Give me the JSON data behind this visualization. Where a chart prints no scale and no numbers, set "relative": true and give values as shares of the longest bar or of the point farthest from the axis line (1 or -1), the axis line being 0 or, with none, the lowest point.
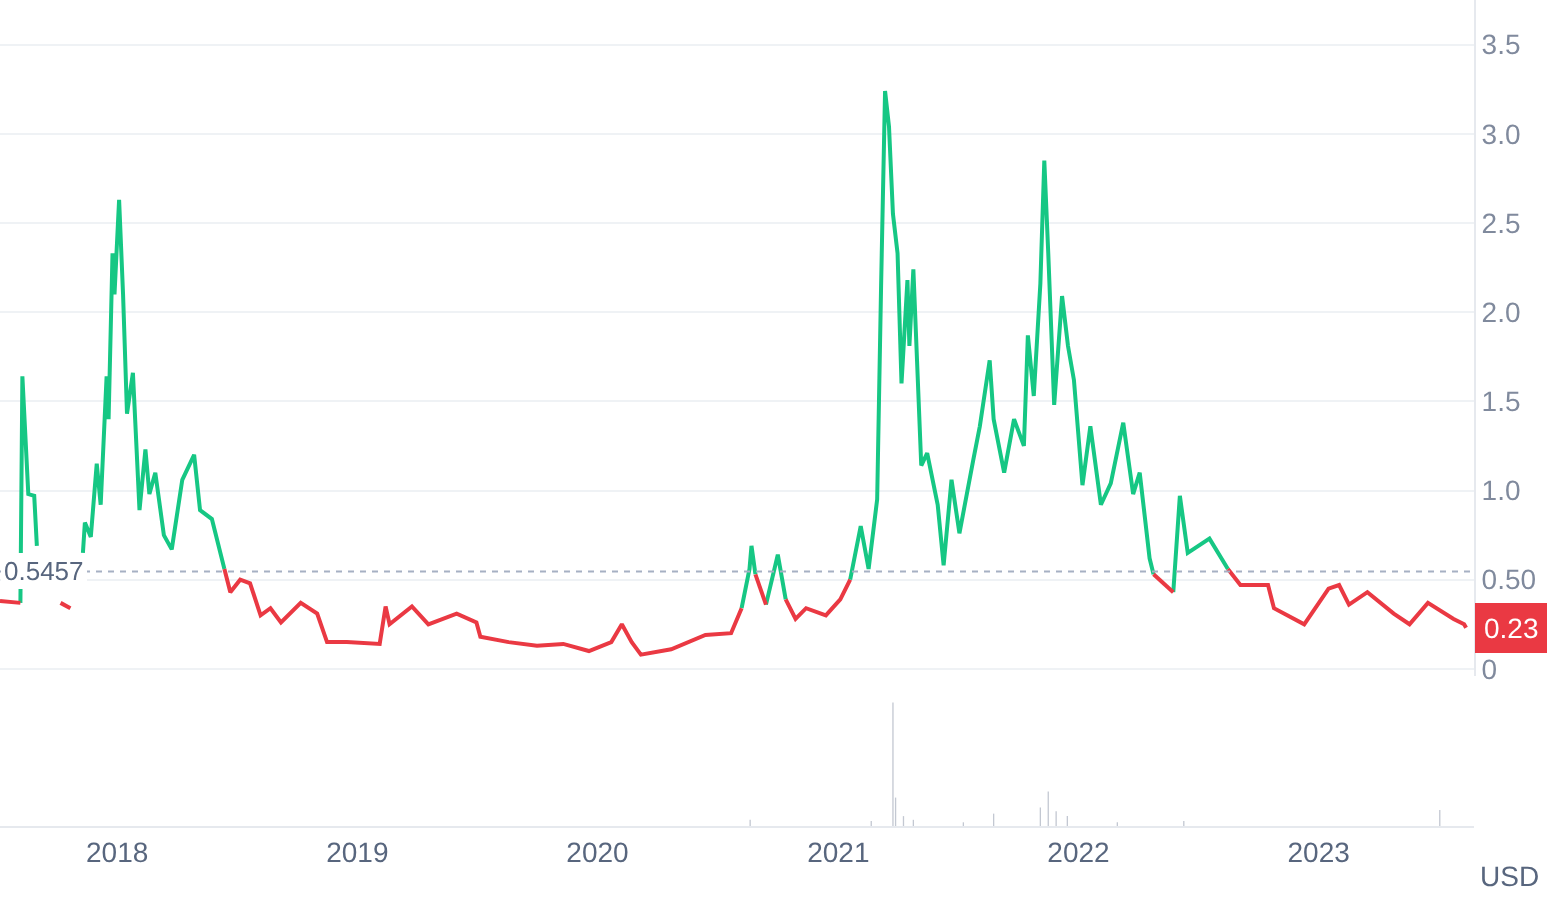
{
  "chart_data": [
    {
      "type": "line",
      "tick_labels": "y",
      "grid": "y",
      "line_style": "solid",
      "xlim": [
        "2017-07-07",
        "2023-08-25"
      ],
      "ylim": [
        -0.04,
        3.75
      ],
      "yticks": [
        0,
        {
          "value": 0.5,
          "label": "0.50"
        },
        {
          "value": 1,
          "label": "1.0"
        },
        1.5,
        {
          "value": 2,
          "label": "2.0"
        },
        2.5,
        {
          "value": 3,
          "label": "3.0"
        },
        3.5
      ],
      "ref_lines": [
        {
          "axis": "y",
          "value": 0.5457,
          "label": "0.5457",
          "color": "#a6b0c3",
          "line_style": "dotted"
        }
      ],
      "annotations": [
        {
          "text": "0.23",
          "x": "2023-08-13",
          "y": 0.23
        }
      ],
      "series": [
        {
          "color": "#16c784",
          "x": [
            "2017-08-07",
            "2017-08-10",
            "2017-08-19",
            "2017-08-28",
            "2017-09-01",
            "2017-10-01",
            "2017-11-10",
            "2017-11-13",
            "2017-11-22",
            "2017-12-01",
            "2017-12-07",
            "2017-12-16",
            "2017-12-19",
            "2017-12-25",
            "2017-12-28",
            "2018-01-04",
            "2018-01-10",
            "2018-01-16",
            "2018-01-25",
            "2018-02-04",
            "2018-02-13",
            "2018-02-19",
            "2018-02-28",
            "2018-03-13",
            "2018-03-25",
            "2018-04-10",
            "2018-04-28",
            "2018-05-07",
            "2018-05-25",
            "2018-06-13",
            "2019-06-01",
            "2020-08-07",
            "2020-08-19",
            "2020-08-22",
            "2020-08-28",
            "2020-09-05",
            "2020-09-13",
            "2020-10-01",
            "2020-10-13",
            "2020-11-15",
            "2021-01-19",
            "2021-02-04",
            "2021-02-16",
            "2021-03-01",
            "2021-03-07",
            "2021-03-13",
            "2021-03-19",
            "2021-03-25",
            "2021-04-01",
            "2021-04-07",
            "2021-04-16",
            "2021-04-19",
            "2021-04-25",
            "2021-05-07",
            "2021-05-16",
            "2021-06-01",
            "2021-06-10",
            "2021-06-22",
            "2021-07-04",
            "2021-07-25",
            "2021-08-04",
            "2021-08-19",
            "2021-08-25",
            "2021-09-10",
            "2021-09-25",
            "2021-10-10",
            "2021-10-16",
            "2021-10-25",
            "2021-11-04",
            "2021-11-10",
            "2021-11-16",
            "2021-11-25",
            "2021-12-07",
            "2021-12-16",
            "2021-12-25",
            "2022-01-07",
            "2022-01-19",
            "2022-02-04",
            "2022-02-19",
            "2022-03-10",
            "2022-03-25",
            "2022-04-04",
            "2022-04-19",
            "2022-04-25",
            "2022-05-10",
            "2022-05-25",
            "2022-06-04",
            "2022-06-16",
            "2022-07-19",
            "2022-08-16"
          ],
          "values": [
            0.37,
            1.64,
            0.98,
            0.97,
            0.69,
            null,
            0.65,
            0.82,
            0.74,
            1.15,
            0.92,
            1.64,
            1.4,
            2.33,
            2.1,
            2.63,
            2.1,
            1.43,
            1.66,
            0.89,
            1.23,
            0.98,
            1.1,
            0.75,
            0.67,
            1.06,
            1.2,
            0.89,
            0.84,
            0.56,
            null,
            0.34,
            0.56,
            0.69,
            0.53,
            null,
            0.36,
            0.64,
            0.39,
            null,
            0.5,
            0.8,
            0.56,
            0.95,
            2.15,
            3.24,
            3.04,
            2.55,
            2.33,
            1.6,
            2.18,
            1.81,
            2.24,
            1.14,
            1.21,
            0.92,
            0.58,
            1.06,
            0.76,
            1.17,
            1.36,
            1.73,
            1.4,
            1.1,
            1.4,
            1.25,
            1.87,
            1.53,
            2.16,
            2.85,
            2.33,
            1.48,
            2.09,
            1.81,
            1.62,
            1.03,
            1.36,
            0.92,
            1.04,
            1.38,
            0.98,
            1.1,
            0.62,
            0.53,
            null,
            0.43,
            0.97,
            0.65,
            0.73,
            0.56
          ]
        },
        {
          "color": "#ea3943",
          "x": [
            "2017-07-07",
            "2017-08-07",
            "2017-09-15",
            "2017-10-07",
            "2017-10-22",
            "2018-03-01",
            "2018-06-13",
            "2018-06-22",
            "2018-07-07",
            "2018-07-22",
            "2018-08-07",
            "2018-08-22",
            "2018-09-07",
            "2018-10-07",
            "2018-11-01",
            "2018-11-16",
            "2018-12-16",
            "2019-02-04",
            "2019-02-13",
            "2019-02-19",
            "2019-03-25",
            "2019-04-19",
            "2019-06-01",
            "2019-07-01",
            "2019-07-07",
            "2019-08-19",
            "2019-10-01",
            "2019-11-10",
            "2019-12-19",
            "2020-01-22",
            "2020-02-07",
            "2020-02-22",
            "2020-03-07",
            "2020-04-22",
            "2020-06-13",
            "2020-07-22",
            "2020-08-07",
            "2020-08-20",
            "2020-08-28",
            "2020-09-13",
            "2020-09-25",
            "2020-10-13",
            "2020-10-28",
            "2020-11-13",
            "2020-12-13",
            "2021-01-04",
            "2021-01-19",
            "2021-06-01",
            "2022-04-25",
            "2022-05-25",
            "2022-07-01",
            "2022-08-16",
            "2022-09-04",
            "2022-10-16",
            "2022-10-25",
            "2022-12-10",
            "2023-01-16",
            "2023-02-01",
            "2023-02-16",
            "2023-03-16",
            "2023-04-25",
            "2023-05-19",
            "2023-06-16",
            "2023-07-25",
            "2023-08-10",
            "2023-08-13"
          ],
          "values": [
            0.38,
            0.37,
            null,
            0.37,
            0.34,
            null,
            0.56,
            0.43,
            0.5,
            0.48,
            0.3,
            0.34,
            0.26,
            0.37,
            0.31,
            0.15,
            0.15,
            0.14,
            0.35,
            0.25,
            0.35,
            0.25,
            0.31,
            0.26,
            0.18,
            0.15,
            0.13,
            0.14,
            0.1,
            0.15,
            0.25,
            0.15,
            0.08,
            0.11,
            0.19,
            0.2,
            0.34,
            null,
            0.53,
            0.36,
            null,
            0.39,
            0.28,
            0.34,
            0.3,
            0.39,
            0.5,
            null,
            0.53,
            0.43,
            null,
            0.56,
            0.47,
            0.47,
            0.34,
            0.25,
            0.45,
            0.47,
            0.36,
            0.43,
            0.31,
            0.25,
            0.37,
            0.28,
            0.25,
            0.23
          ]
        }
      ]
    },
    {
      "type": "bar",
      "relative": true,
      "tick_labels": "x",
      "annotations": [
        "USD"
      ],
      "color": "#c3c8d2",
      "xlim": [
        "2017-07-07",
        "2023-08-25"
      ],
      "xticks": [
        {
          "value": "2018-01-01",
          "label": "2018"
        },
        {
          "value": "2019-01-01",
          "label": "2019"
        },
        {
          "value": "2020-01-01",
          "label": "2020"
        },
        {
          "value": "2021-01-01",
          "label": "2021"
        },
        {
          "value": "2022-01-01",
          "label": "2022"
        },
        {
          "value": "2023-01-01",
          "label": "2023"
        }
      ],
      "x": [
        "2020-08-20",
        "2021-02-20",
        "2021-03-25",
        "2021-03-29",
        "2021-04-10",
        "2021-04-25",
        "2021-07-10",
        "2021-08-25",
        "2021-11-04",
        "2021-11-16",
        "2021-11-28",
        "2021-12-15",
        "2022-03-01",
        "2022-06-10",
        "2023-07-04"
      ],
      "values": [
        0.05,
        0.04,
        1,
        0.23,
        0.08,
        0.05,
        0.03,
        0.1,
        0.15,
        0.28,
        0.12,
        0.08,
        0.03,
        0.04,
        0.13
      ]
    }
  ]
}
